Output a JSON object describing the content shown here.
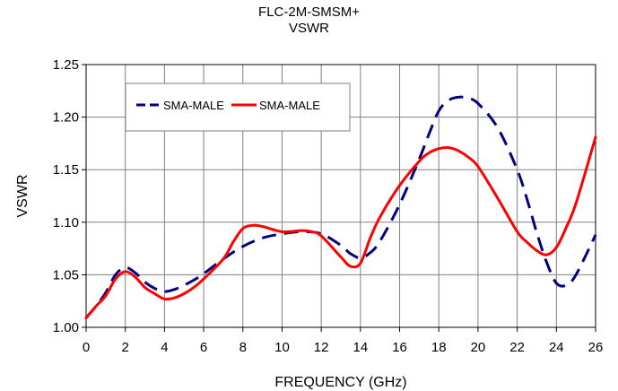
{
  "chart_data": {
    "type": "line",
    "title": "FLC-2M-SMSM+",
    "subtitle": "VSWR",
    "xlabel": "FREQUENCY (GHz)",
    "ylabel": "VSWR",
    "xlim": [
      0,
      26
    ],
    "ylim": [
      1.0,
      1.25
    ],
    "xticks": [
      "0",
      "2",
      "4",
      "6",
      "8",
      "10",
      "12",
      "14",
      "16",
      "18",
      "20",
      "22",
      "24",
      "26"
    ],
    "yticks": [
      "1.00",
      "1.05",
      "1.10",
      "1.15",
      "1.20",
      "1.25"
    ],
    "grid": true,
    "legend_position": "top-left",
    "series": [
      {
        "name": "SMA-MALE",
        "color": "#000080",
        "style": "dashed",
        "x": [
          0,
          0.5,
          1,
          1.5,
          2,
          2.5,
          3,
          3.5,
          4,
          4.5,
          5,
          5.5,
          6,
          7,
          8,
          9,
          10,
          11,
          12,
          13,
          13.5,
          14,
          14.5,
          15,
          16,
          17,
          17.5,
          18,
          18.5,
          19,
          19.5,
          20,
          21,
          22,
          22.5,
          23,
          23.5,
          24,
          24.5,
          25,
          26
        ],
        "y": [
          1.009,
          1.02,
          1.033,
          1.05,
          1.057,
          1.052,
          1.043,
          1.037,
          1.034,
          1.036,
          1.04,
          1.045,
          1.051,
          1.065,
          1.077,
          1.085,
          1.089,
          1.091,
          1.089,
          1.078,
          1.07,
          1.066,
          1.071,
          1.082,
          1.117,
          1.16,
          1.184,
          1.206,
          1.216,
          1.219,
          1.218,
          1.213,
          1.19,
          1.15,
          1.122,
          1.09,
          1.062,
          1.042,
          1.04,
          1.05,
          1.088
        ]
      },
      {
        "name": "SMA-MALE",
        "color": "#ff0000",
        "style": "solid",
        "x": [
          0,
          0.5,
          1,
          1.5,
          2,
          2.5,
          3,
          3.5,
          4,
          4.5,
          5,
          5.5,
          6,
          7,
          7.5,
          8,
          8.5,
          9,
          10,
          11,
          11.5,
          12,
          13,
          13.5,
          14,
          14.5,
          15,
          16,
          17,
          17.5,
          18,
          18.5,
          19,
          19.5,
          20,
          21,
          22,
          22.5,
          23,
          23.5,
          24,
          24.5,
          25,
          26
        ],
        "y": [
          1.009,
          1.02,
          1.03,
          1.046,
          1.053,
          1.048,
          1.038,
          1.032,
          1.027,
          1.028,
          1.032,
          1.038,
          1.046,
          1.065,
          1.081,
          1.094,
          1.097,
          1.096,
          1.091,
          1.092,
          1.091,
          1.087,
          1.067,
          1.058,
          1.061,
          1.085,
          1.105,
          1.135,
          1.158,
          1.166,
          1.17,
          1.171,
          1.168,
          1.162,
          1.153,
          1.123,
          1.091,
          1.081,
          1.073,
          1.069,
          1.076,
          1.095,
          1.118,
          1.181
        ]
      }
    ]
  }
}
